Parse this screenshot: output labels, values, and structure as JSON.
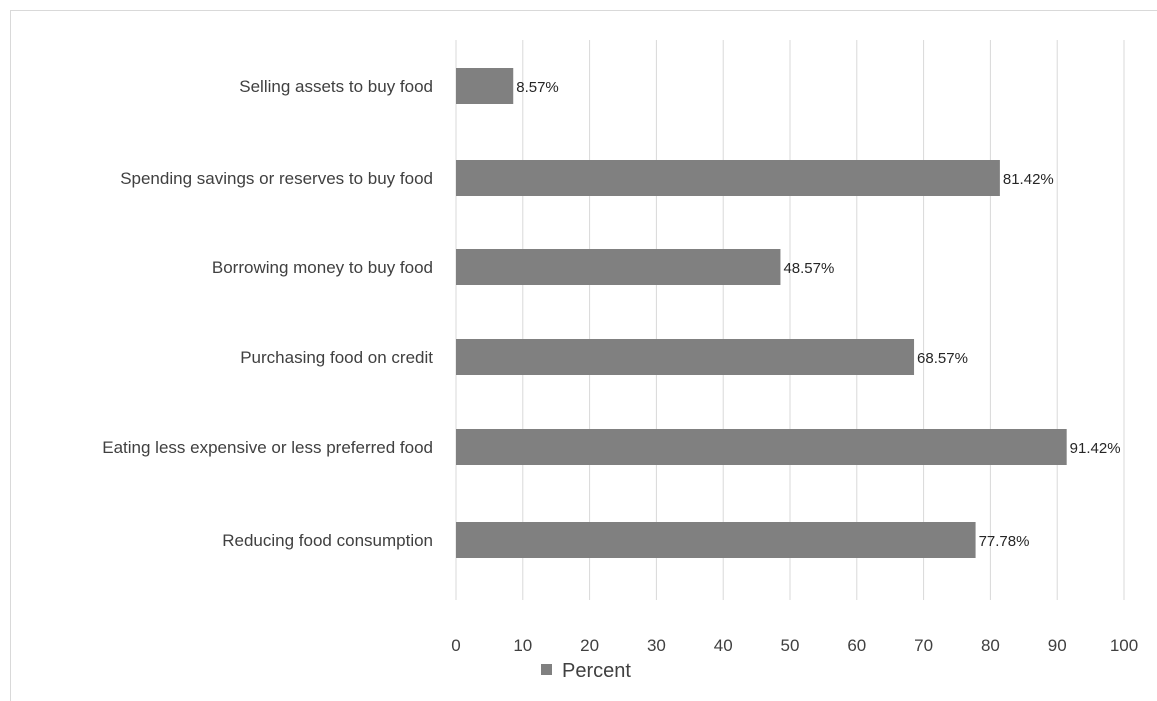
{
  "chart_data": {
    "type": "bar",
    "orientation": "horizontal",
    "categories": [
      "Selling assets to buy food",
      "Spending savings or reserves to buy food",
      "Borrowing money to buy food",
      "Purchasing food on credit",
      "Eating less expensive or less preferred food",
      "Reducing food consumption"
    ],
    "series": [
      {
        "name": "Percent",
        "values": [
          8.57,
          81.42,
          48.57,
          68.57,
          91.42,
          77.78
        ],
        "labels": [
          "8.57%",
          "81.42%",
          "48.57%",
          "68.57%",
          "91.42%",
          "77.78%"
        ],
        "color": "#808080"
      }
    ],
    "xlim": [
      0,
      100
    ],
    "xticks": [
      0,
      10,
      20,
      30,
      40,
      50,
      60,
      70,
      80,
      90,
      100
    ],
    "xlabel": "",
    "ylabel": "",
    "title": "",
    "grid": "vertical",
    "legend_position": "bottom"
  }
}
